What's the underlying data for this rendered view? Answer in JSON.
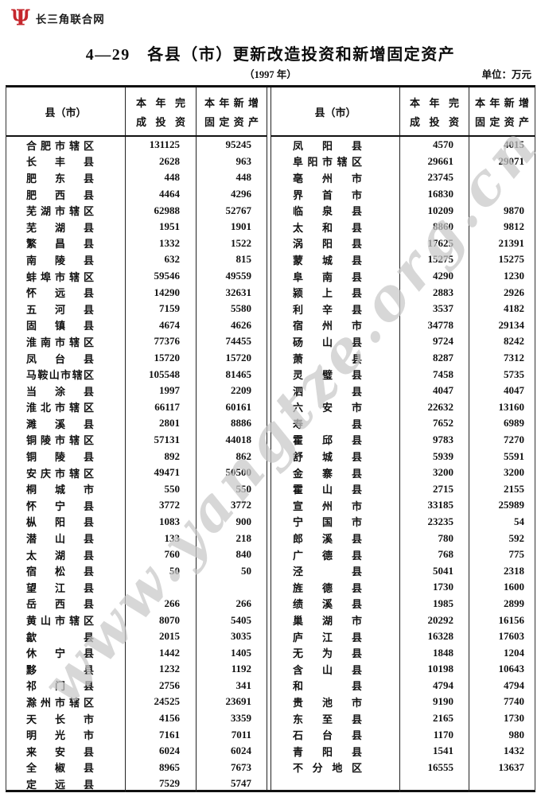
{
  "brand": {
    "logo_text": "长三角联合网",
    "logo_icon_glyph": "Ψ",
    "brand_color": "#c5272d"
  },
  "header": {
    "title": "4—29　各县（市）更新改造投资和新增固定资产",
    "subtitle": "（1997 年）",
    "unit_label": "单位：万元"
  },
  "watermark": {
    "text": "www.yangtze.org.cn",
    "color": "#c9c9c9"
  },
  "table": {
    "county_header": "县（市）",
    "invest_header_lines": [
      "本年完",
      "成投资"
    ],
    "assets_header_lines": [
      "本年新增",
      "固定资产"
    ],
    "left_rows": [
      {
        "name": "合肥市辖区",
        "invest": "131125",
        "assets": "95245"
      },
      {
        "name": "长丰县",
        "invest": "2628",
        "assets": "963"
      },
      {
        "name": "肥东县",
        "invest": "448",
        "assets": "448"
      },
      {
        "name": "肥西县",
        "invest": "4464",
        "assets": "4296"
      },
      {
        "name": "芜湖市辖区",
        "invest": "62988",
        "assets": "52767"
      },
      {
        "name": "芜湖县",
        "invest": "1951",
        "assets": "1901"
      },
      {
        "name": "繁昌县",
        "invest": "1332",
        "assets": "1522"
      },
      {
        "name": "南陵县",
        "invest": "632",
        "assets": "815"
      },
      {
        "name": "蚌埠市辖区",
        "invest": "59546",
        "assets": "49559"
      },
      {
        "name": "怀远县",
        "invest": "14290",
        "assets": "32631"
      },
      {
        "name": "五河县",
        "invest": "7159",
        "assets": "5580"
      },
      {
        "name": "固镇县",
        "invest": "4674",
        "assets": "4626"
      },
      {
        "name": "淮南市辖区",
        "invest": "77376",
        "assets": "74455"
      },
      {
        "name": "凤台县",
        "invest": "15720",
        "assets": "15720"
      },
      {
        "name": "马鞍山市辖区",
        "invest": "105548",
        "assets": "81465"
      },
      {
        "name": "当涂县",
        "invest": "1997",
        "assets": "2209"
      },
      {
        "name": "淮北市辖区",
        "invest": "66117",
        "assets": "60161"
      },
      {
        "name": "濉溪县",
        "invest": "2801",
        "assets": "8886"
      },
      {
        "name": "铜陵市辖区",
        "invest": "57131",
        "assets": "44018"
      },
      {
        "name": "铜陵县",
        "invest": "892",
        "assets": "862"
      },
      {
        "name": "安庆市辖区",
        "invest": "49471",
        "assets": "50500"
      },
      {
        "name": "桐城市",
        "invest": "550",
        "assets": "550"
      },
      {
        "name": "怀宁县",
        "invest": "3772",
        "assets": "3772"
      },
      {
        "name": "枞阳县",
        "invest": "1083",
        "assets": "900"
      },
      {
        "name": "潜山县",
        "invest": "133",
        "assets": "218"
      },
      {
        "name": "太湖县",
        "invest": "760",
        "assets": "840"
      },
      {
        "name": "宿松县",
        "invest": "50",
        "assets": "50"
      },
      {
        "name": "望江县",
        "invest": "",
        "assets": ""
      },
      {
        "name": "岳西县",
        "invest": "266",
        "assets": "266"
      },
      {
        "name": "黄山市辖区",
        "invest": "8070",
        "assets": "5405"
      },
      {
        "name": "歙县",
        "invest": "2015",
        "assets": "3035"
      },
      {
        "name": "休宁县",
        "invest": "1442",
        "assets": "1405"
      },
      {
        "name": "黟县",
        "invest": "1232",
        "assets": "1192"
      },
      {
        "name": "祁门县",
        "invest": "2756",
        "assets": "341"
      },
      {
        "name": "滁州市辖区",
        "invest": "24525",
        "assets": "23691"
      },
      {
        "name": "天长市",
        "invest": "4156",
        "assets": "3359"
      },
      {
        "name": "明光市",
        "invest": "7161",
        "assets": "7011"
      },
      {
        "name": "来安县",
        "invest": "6024",
        "assets": "6024"
      },
      {
        "name": "全椒县",
        "invest": "8965",
        "assets": "7673"
      },
      {
        "name": "定远县",
        "invest": "7529",
        "assets": "5747"
      }
    ],
    "right_rows": [
      {
        "name": "凤阳县",
        "invest": "4570",
        "assets": "4015"
      },
      {
        "name": "阜阳市辖区",
        "invest": "29661",
        "assets": "29071"
      },
      {
        "name": "亳州市",
        "invest": "23745",
        "assets": ""
      },
      {
        "name": "界首市",
        "invest": "16830",
        "assets": ""
      },
      {
        "name": "临泉县",
        "invest": "10209",
        "assets": "9870"
      },
      {
        "name": "太和县",
        "invest": "8860",
        "assets": "9812"
      },
      {
        "name": "涡阳县",
        "invest": "17625",
        "assets": "21391"
      },
      {
        "name": "蒙城县",
        "invest": "15275",
        "assets": "15275"
      },
      {
        "name": "阜南县",
        "invest": "4290",
        "assets": "1230"
      },
      {
        "name": "颍上县",
        "invest": "2883",
        "assets": "2926"
      },
      {
        "name": "利辛县",
        "invest": "3537",
        "assets": "4182"
      },
      {
        "name": "宿州市",
        "invest": "34778",
        "assets": "29134"
      },
      {
        "name": "砀山县",
        "invest": "9724",
        "assets": "8242"
      },
      {
        "name": "萧县",
        "invest": "8287",
        "assets": "7312"
      },
      {
        "name": "灵璧县",
        "invest": "7458",
        "assets": "5735"
      },
      {
        "name": "泗县",
        "invest": "4047",
        "assets": "4047"
      },
      {
        "name": "六安市",
        "invest": "22632",
        "assets": "13160"
      },
      {
        "name": "寿县",
        "invest": "7652",
        "assets": "6989"
      },
      {
        "name": "霍邱县",
        "invest": "9783",
        "assets": "7270"
      },
      {
        "name": "舒城县",
        "invest": "5939",
        "assets": "5591"
      },
      {
        "name": "金寨县",
        "invest": "3200",
        "assets": "3200"
      },
      {
        "name": "霍山县",
        "invest": "2715",
        "assets": "2155"
      },
      {
        "name": "宣州市",
        "invest": "33185",
        "assets": "25989"
      },
      {
        "name": "宁国市",
        "invest": "23235",
        "assets": "54"
      },
      {
        "name": "郎溪县",
        "invest": "780",
        "assets": "592"
      },
      {
        "name": "广德县",
        "invest": "768",
        "assets": "775"
      },
      {
        "name": "泾县",
        "invest": "5041",
        "assets": "2318"
      },
      {
        "name": "旌德县",
        "invest": "1730",
        "assets": "1600"
      },
      {
        "name": "绩溪县",
        "invest": "1985",
        "assets": "2899"
      },
      {
        "name": "巢湖市",
        "invest": "20292",
        "assets": "16156"
      },
      {
        "name": "庐江县",
        "invest": "16328",
        "assets": "17603"
      },
      {
        "name": "无为县",
        "invest": "1848",
        "assets": "1204"
      },
      {
        "name": "含山县",
        "invest": "10198",
        "assets": "10643"
      },
      {
        "name": "和县",
        "invest": "4794",
        "assets": "4794"
      },
      {
        "name": "贵池市",
        "invest": "9190",
        "assets": "7740"
      },
      {
        "name": "东至县",
        "invest": "2165",
        "assets": "1730"
      },
      {
        "name": "石台县",
        "invest": "1170",
        "assets": "980"
      },
      {
        "name": "青阳县",
        "invest": "1541",
        "assets": "1432"
      },
      {
        "name": "不分地区",
        "invest": "16555",
        "assets": "13637"
      }
    ]
  }
}
